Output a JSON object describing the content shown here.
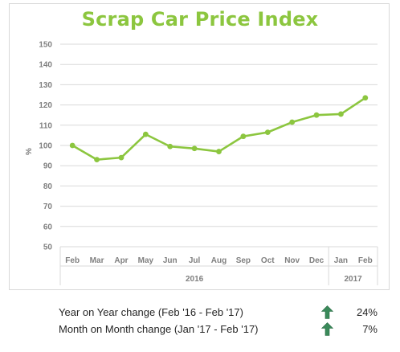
{
  "chart_data": {
    "type": "line",
    "title": "Scrap Car Price Index",
    "ylabel": "%",
    "ylim": [
      50,
      150
    ],
    "yticks": [
      150,
      140,
      130,
      120,
      110,
      100,
      90,
      80,
      70,
      60,
      50
    ],
    "categories": [
      "Feb",
      "Mar",
      "Apr",
      "May",
      "Jun",
      "Jul",
      "Aug",
      "Sep",
      "Oct",
      "Nov",
      "Dec",
      "Jan",
      "Feb"
    ],
    "groups": [
      {
        "label": "2016",
        "span": 11
      },
      {
        "label": "2017",
        "span": 2
      }
    ],
    "series": [
      {
        "values": [
          100,
          93,
          94,
          105.5,
          99.5,
          98.5,
          97,
          104.5,
          106.5,
          111.5,
          115,
          115.5,
          123.5
        ],
        "color": "#8cc63f"
      }
    ],
    "grid": true
  },
  "summary": {
    "rows": [
      {
        "label": "Year on Year change (Feb '16 - Feb '17)",
        "value": "24%",
        "icon": "up-arrow-icon"
      },
      {
        "label": "Month on Month change (Jan '17 - Feb '17)",
        "value": "7%",
        "icon": "up-arrow-icon"
      }
    ],
    "arrow_color": "#3a8a5a"
  }
}
